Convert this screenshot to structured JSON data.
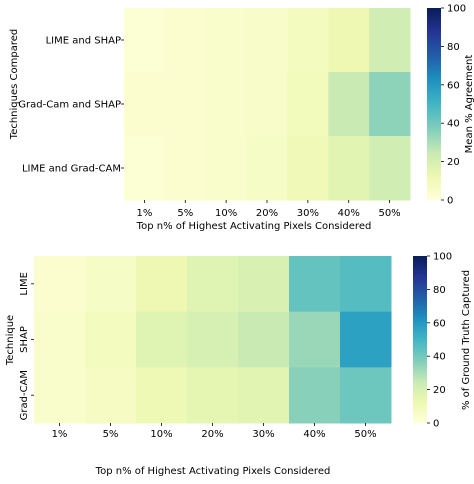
{
  "colormap": [
    "#ffffd9",
    "#edf8b1",
    "#c7e9b4",
    "#7fcdbb",
    "#41b6c4",
    "#1d91c0",
    "#225ea8",
    "#253494",
    "#081d58"
  ],
  "chart_data": [
    {
      "type": "heatmap",
      "title": "",
      "xlabel": "Top n% of Highest Activating Pixels Considered",
      "ylabel": "Techniques Compared",
      "colorbar_label": "Mean % Agreement",
      "x": [
        "1%",
        "5%",
        "10%",
        "20%",
        "30%",
        "40%",
        "50%"
      ],
      "y": [
        "LIME and SHAP",
        "Grad-Cam and SHAP",
        "LIME and Grad-CAM"
      ],
      "values": [
        [
          2,
          3,
          4,
          5,
          8,
          12,
          22
        ],
        [
          3,
          3,
          4,
          5,
          9,
          24,
          35
        ],
        [
          2,
          3,
          4,
          6,
          10,
          16,
          22
        ]
      ],
      "vmin": 0,
      "vmax": 100,
      "colorbar_ticks": [
        "0",
        "20",
        "40",
        "60",
        "80",
        "100"
      ]
    },
    {
      "type": "heatmap",
      "title": "",
      "xlabel": "Top n% of Highest Activating Pixels Considered",
      "ylabel": "Technique",
      "colorbar_label": "% of Ground Truth Captured",
      "x": [
        "1%",
        "5%",
        "10%",
        "20%",
        "30%",
        "40%",
        "50%"
      ],
      "y": [
        "LIME",
        "SHAP",
        "Grad-CAM"
      ],
      "values": [
        [
          3,
          6,
          12,
          17,
          19,
          43,
          46
        ],
        [
          4,
          8,
          17,
          20,
          24,
          33,
          57
        ],
        [
          4,
          7,
          11,
          15,
          16,
          36,
          41
        ]
      ],
      "vmin": 0,
      "vmax": 100,
      "colorbar_ticks": [
        "0",
        "20",
        "40",
        "60",
        "80",
        "100"
      ]
    }
  ]
}
